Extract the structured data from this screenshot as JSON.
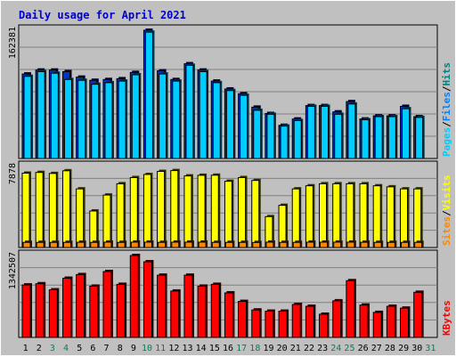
{
  "colors": {
    "background": "#C0C0C0",
    "plot": "#C0C0C0",
    "title": "#0000CC",
    "grid": "#808080",
    "hits_back": "#0033CC",
    "hits": "#00CCFF",
    "pages_label": "#00CCFF",
    "files_label": "#0080FF",
    "hits_label": "#008080",
    "visits": "#FFFF00",
    "sites": "#FF8800",
    "kbytes": "#FF0000",
    "weekend_day": "#00805C",
    "weekday": "#000000"
  },
  "chart_data": {
    "type": "bar",
    "title": "Daily usage for April 2021",
    "days": [
      "1",
      "2",
      "3",
      "4",
      "5",
      "6",
      "7",
      "8",
      "9",
      "10",
      "11",
      "12",
      "13",
      "14",
      "15",
      "16",
      "17",
      "18",
      "19",
      "20",
      "21",
      "22",
      "23",
      "24",
      "25",
      "26",
      "27",
      "28",
      "29",
      "30",
      "31"
    ],
    "weekend_days": [
      "3",
      "4",
      "10",
      "11",
      "17",
      "18",
      "24",
      "25",
      "31"
    ],
    "panels": [
      {
        "name": "top",
        "axis_max_label": "162381",
        "ylim": [
          0,
          162381
        ],
        "right_labels": [
          "Pages",
          "/",
          "Files",
          "/",
          "Hits"
        ],
        "series": [
          {
            "name": "Hits",
            "values": [
              107000,
              112000,
              112000,
              110000,
              103000,
              99000,
              100000,
              101000,
              109000,
              162381,
              111000,
              100000,
              120000,
              112000,
              98000,
              88000,
              82000,
              65000,
              57000,
              42000,
              50000,
              67000,
              67000,
              59000,
              72000,
              50000,
              54000,
              54000,
              66000,
              53000,
              0
            ]
          },
          {
            "name": "Files",
            "values": [
              104000,
              110000,
              108000,
              100000,
              99000,
              94000,
              96000,
              98000,
              106000,
              160000,
              107000,
              98000,
              118000,
              110000,
              96000,
              86000,
              80000,
              61000,
              56000,
              41000,
              48000,
              66000,
              66000,
              56000,
              69000,
              49000,
              53000,
              53000,
              63000,
              52000,
              0
            ]
          },
          {
            "name": "Pages",
            "values": [
              104000,
              110000,
              108000,
              100000,
              99000,
              94000,
              96000,
              98000,
              106000,
              160000,
              107000,
              98000,
              118000,
              110000,
              96000,
              86000,
              80000,
              61000,
              56000,
              41000,
              48000,
              66000,
              66000,
              56000,
              69000,
              49000,
              53000,
              53000,
              63000,
              52000,
              0
            ]
          }
        ]
      },
      {
        "name": "middle",
        "axis_max_label": "7878",
        "ylim": [
          0,
          7878
        ],
        "right_labels": [
          "Sites",
          "/",
          "Visits"
        ],
        "series": [
          {
            "name": "Visits",
            "values": [
              7230,
              7300,
              7200,
              7460,
              5700,
              3550,
              5100,
              6200,
              6800,
              7100,
              7400,
              7480,
              6960,
              7020,
              7030,
              6440,
              6800,
              6520,
              3000,
              4100,
              5700,
              6000,
              6200,
              6200,
              6200,
              6200,
              6000,
              5900,
              5700,
              5700,
              0
            ]
          },
          {
            "name": "Sites",
            "values": [
              500,
              500,
              500,
              500,
              510,
              500,
              520,
              500,
              520,
              520,
              500,
              520,
              520,
              520,
              500,
              500,
              500,
              490,
              520,
              500,
              500,
              520,
              520,
              520,
              520,
              510,
              500,
              500,
              500,
              500,
              0
            ]
          }
        ]
      },
      {
        "name": "bottom",
        "axis_max_label": "1342507",
        "ylim": [
          0,
          1342507
        ],
        "right_labels": [
          "KBytes"
        ],
        "series": [
          {
            "name": "KBytes",
            "values": [
              860000,
              880000,
              780000,
              970000,
              1030000,
              840000,
              1080000,
              870000,
              1342507,
              1240000,
              1020000,
              760000,
              1020000,
              840000,
              870000,
              730000,
              590000,
              450000,
              430000,
              430000,
              540000,
              510000,
              380000,
              600000,
              930000,
              530000,
              410000,
              510000,
              480000,
              740000,
              0
            ]
          }
        ]
      }
    ]
  }
}
